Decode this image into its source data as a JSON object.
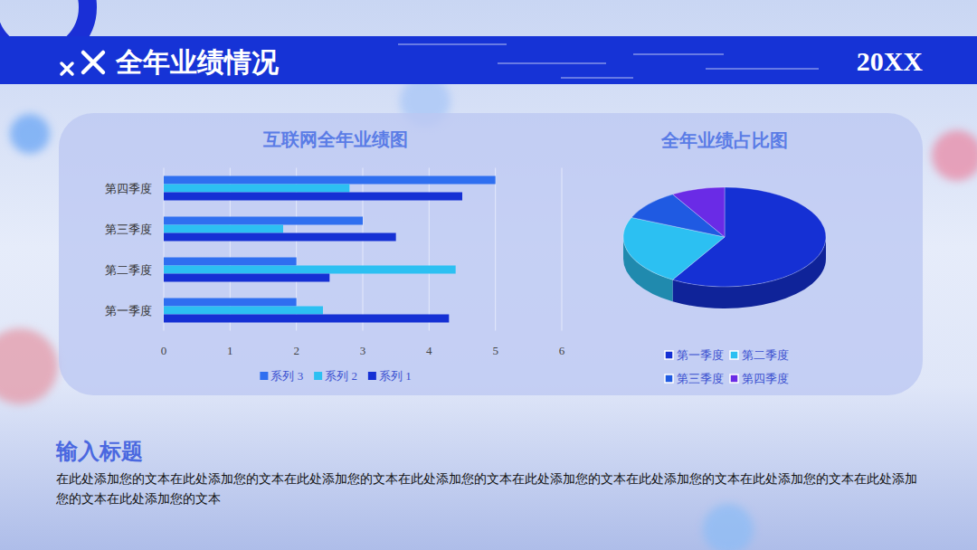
{
  "header": {
    "title": "全年业绩情况",
    "year": "20XX"
  },
  "section": {
    "title": "输入标题",
    "body": "在此处添加您的文本在此处添加您的文本在此处添加您的文本在此处添加您的文本在此处添加您的文本在此处添加您的文本在此处添加您的文本在此处添加您的文本在此处添加您的文本"
  },
  "chart_data": [
    {
      "type": "bar",
      "orientation": "horizontal",
      "title": "互联网全年业绩图",
      "categories": [
        "第一季度",
        "第二季度",
        "第三季度",
        "第四季度"
      ],
      "series": [
        {
          "name": "系列 3",
          "color": "#2f6ff0",
          "values": [
            2,
            2,
            3,
            5
          ]
        },
        {
          "name": "系列 2",
          "color": "#2cc0f2",
          "values": [
            2.4,
            4.4,
            1.8,
            2.8
          ]
        },
        {
          "name": "系列 1",
          "color": "#1530d4",
          "values": [
            4.3,
            2.5,
            3.5,
            4.5
          ]
        }
      ],
      "xlim": [
        0,
        6
      ],
      "xticks": [
        0,
        1,
        2,
        3,
        4,
        5,
        6
      ],
      "grid": true,
      "legend": "bottom"
    },
    {
      "type": "pie",
      "title": "全年业绩占比图",
      "categories": [
        "第一季度",
        "第二季度",
        "第三季度",
        "第四季度"
      ],
      "values": [
        8.2,
        3.2,
        1.4,
        1.2
      ],
      "colors": [
        "#1530d4",
        "#2cc0f2",
        "#1f5ae2",
        "#6a2be6"
      ],
      "legend": "bottom"
    }
  ]
}
